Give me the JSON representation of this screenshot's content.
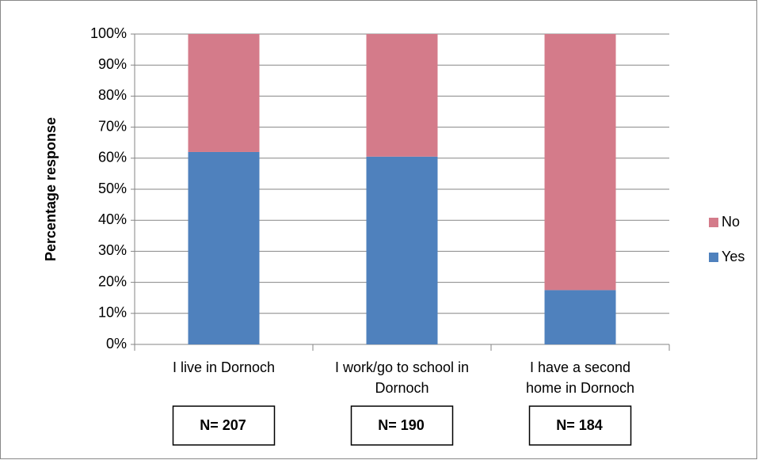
{
  "chart_data": {
    "type": "stacked_bar",
    "ylabel": "Percentage response",
    "categories": [
      "I live in Dornoch",
      "I work/go to school in Dornoch",
      "I have a second home in Dornoch"
    ],
    "series": [
      {
        "name": "Yes",
        "color": "#4f81bd",
        "values": [
          62,
          60.5,
          17.5
        ]
      },
      {
        "name": "No",
        "color": "#d47b8a",
        "values": [
          38,
          39.5,
          82.5
        ]
      }
    ],
    "ylim": [
      0,
      100
    ],
    "yticks": [
      {
        "value": 0,
        "label": "0%"
      },
      {
        "value": 10,
        "label": "10%"
      },
      {
        "value": 20,
        "label": "20%"
      },
      {
        "value": 30,
        "label": "30%"
      },
      {
        "value": 40,
        "label": "40%"
      },
      {
        "value": 50,
        "label": "50%"
      },
      {
        "value": 60,
        "label": "60%"
      },
      {
        "value": 70,
        "label": "70%"
      },
      {
        "value": 80,
        "label": "80%"
      },
      {
        "value": 90,
        "label": "90%"
      },
      {
        "value": 100,
        "label": "100%"
      }
    ],
    "grid": true,
    "legend": "right",
    "annotations": [
      "N= 207",
      "N= 190",
      "N= 184"
    ]
  }
}
